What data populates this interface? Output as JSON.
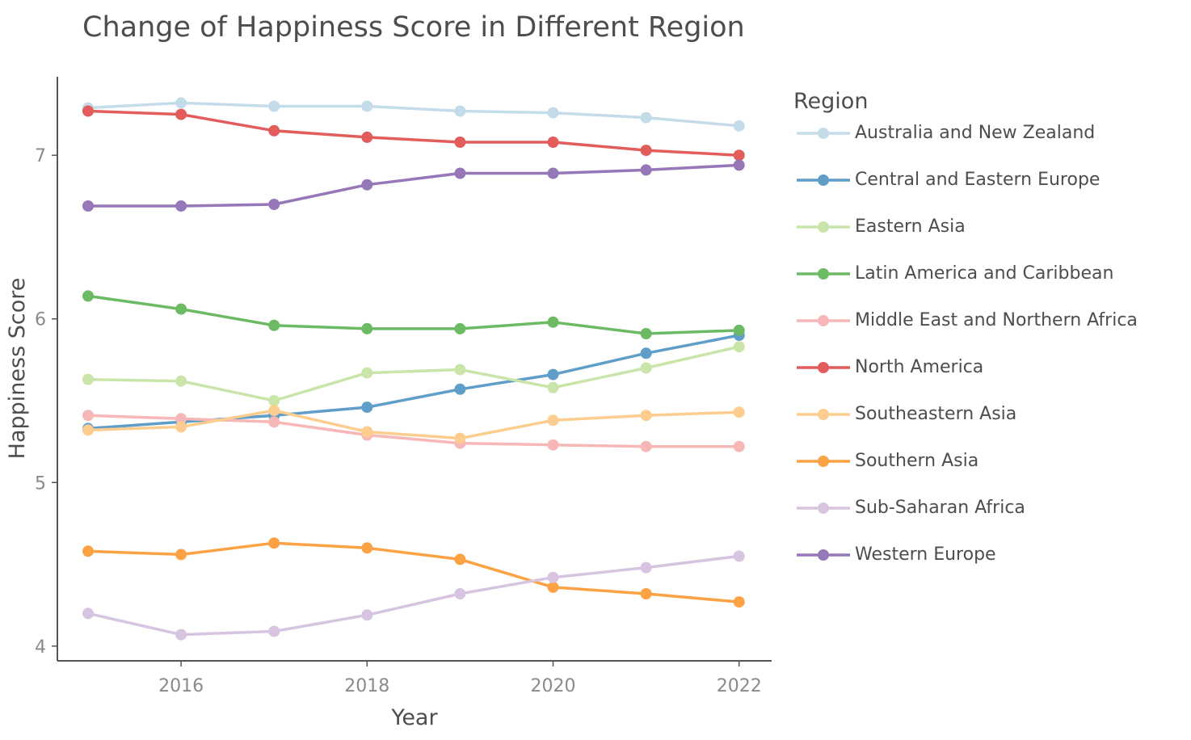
{
  "chart_data": {
    "type": "line",
    "title": "Change of Happiness Score in Different Region",
    "xlabel": "Year",
    "ylabel": "Happiness Score",
    "x": [
      2015,
      2016,
      2017,
      2018,
      2019,
      2020,
      2021,
      2022
    ],
    "xlim": [
      2014.67,
      2022.35
    ],
    "ylim": [
      3.91,
      7.48
    ],
    "xticks": [
      "2016",
      "2018",
      "2020",
      "2022"
    ],
    "yticks": [
      "4",
      "5",
      "6",
      "7"
    ],
    "grid": false,
    "legend_title": "Region",
    "legend_position": "right",
    "series": [
      {
        "name": "Australia and New Zealand",
        "color": "#c4dcea",
        "values": [
          7.29,
          7.32,
          7.3,
          7.3,
          7.27,
          7.26,
          7.23,
          7.18
        ]
      },
      {
        "name": "Central and Eastern Europe",
        "color": "#5f9ec9",
        "values": [
          5.33,
          5.37,
          5.41,
          5.46,
          5.57,
          5.66,
          5.79,
          5.9
        ]
      },
      {
        "name": "Eastern Asia",
        "color": "#c9e5a9",
        "values": [
          5.63,
          5.62,
          5.5,
          5.67,
          5.69,
          5.58,
          5.7,
          5.83
        ]
      },
      {
        "name": "Latin America and Caribbean",
        "color": "#6cbb64",
        "values": [
          6.14,
          6.06,
          5.96,
          5.94,
          5.94,
          5.98,
          5.91,
          5.93
        ]
      },
      {
        "name": "Middle East and Northern Africa",
        "color": "#f7b7b7",
        "values": [
          5.41,
          5.39,
          5.37,
          5.29,
          5.24,
          5.23,
          5.22,
          5.22
        ]
      },
      {
        "name": "North America",
        "color": "#e25c5c",
        "values": [
          7.27,
          7.25,
          7.15,
          7.11,
          7.08,
          7.08,
          7.03,
          7.0
        ]
      },
      {
        "name": "Southeastern Asia",
        "color": "#fdcd8f",
        "values": [
          5.32,
          5.34,
          5.44,
          5.31,
          5.27,
          5.38,
          5.41,
          5.43
        ]
      },
      {
        "name": "Southern Asia",
        "color": "#fba244",
        "values": [
          4.58,
          4.56,
          4.63,
          4.6,
          4.53,
          4.36,
          4.32,
          4.27
        ]
      },
      {
        "name": "Sub-Saharan Africa",
        "color": "#d7c4e1",
        "values": [
          4.2,
          4.07,
          4.09,
          4.19,
          4.32,
          4.42,
          4.48,
          4.55
        ]
      },
      {
        "name": "Western Europe",
        "color": "#9677b8",
        "values": [
          6.69,
          6.69,
          6.7,
          6.82,
          6.89,
          6.89,
          6.91,
          6.94
        ]
      }
    ]
  }
}
